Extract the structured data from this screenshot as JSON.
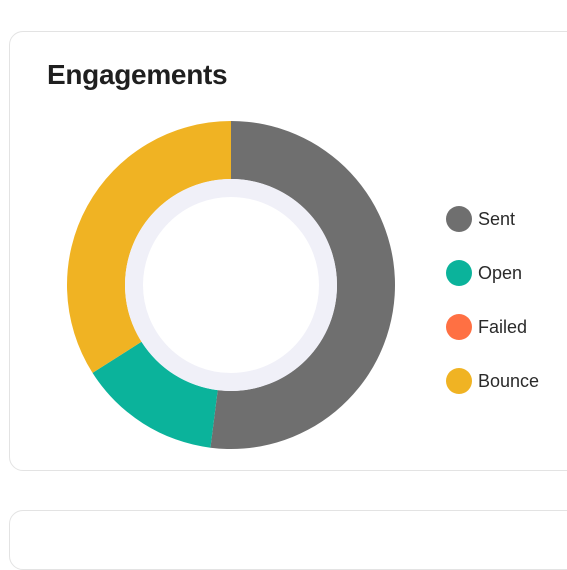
{
  "card": {
    "title": "Engagements"
  },
  "chart_data": {
    "type": "pie",
    "title": "Engagements",
    "categories": [
      "Sent",
      "Open",
      "Failed",
      "Bounce"
    ],
    "values": [
      52,
      14,
      0,
      34
    ],
    "colors": [
      "#6f6f6f",
      "#0bb39b",
      "#ff7043",
      "#f0b323"
    ],
    "donut": true,
    "legend": "right"
  }
}
